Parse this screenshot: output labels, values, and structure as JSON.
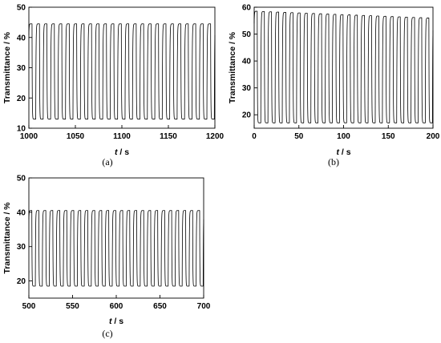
{
  "chart_data": [
    {
      "type": "line",
      "panel": "(a)",
      "xlabel_italic": "t",
      "xlabel_unit": " / s",
      "ylabel": "Transmittance / %",
      "xlim": [
        1000,
        1200
      ],
      "ylim": [
        10,
        50
      ],
      "xticks": [
        1000,
        1050,
        1100,
        1150,
        1200
      ],
      "yticks": [
        10,
        20,
        30,
        40,
        50
      ],
      "period_s": 8,
      "cycles": 25,
      "bleached_level": 44.5,
      "colored_level": 13,
      "grid": false,
      "legend": "none"
    },
    {
      "type": "line",
      "panel": "(b)",
      "xlabel_italic": "t",
      "xlabel_unit": " / s",
      "ylabel": "Transmittance / %",
      "xlim": [
        0,
        200
      ],
      "ylim": [
        15,
        60
      ],
      "xticks": [
        0,
        50,
        100,
        150,
        200
      ],
      "yticks": [
        20,
        30,
        40,
        50,
        60
      ],
      "period_s": 8,
      "cycles": 25,
      "bleached_level_start": 58.5,
      "bleached_level_end": 56,
      "colored_level": 17,
      "grid": false,
      "legend": "none"
    },
    {
      "type": "line",
      "panel": "(c)",
      "xlabel_italic": "t",
      "xlabel_unit": " / s",
      "ylabel": "Transmittance / %",
      "xlim": [
        500,
        700
      ],
      "ylim": [
        15,
        50
      ],
      "xticks": [
        500,
        550,
        600,
        650,
        700
      ],
      "yticks": [
        20,
        30,
        40,
        50
      ],
      "period_s": 8,
      "cycles": 25,
      "bleached_level": 40.5,
      "colored_level": 18.5,
      "grid": false,
      "legend": "none"
    }
  ]
}
